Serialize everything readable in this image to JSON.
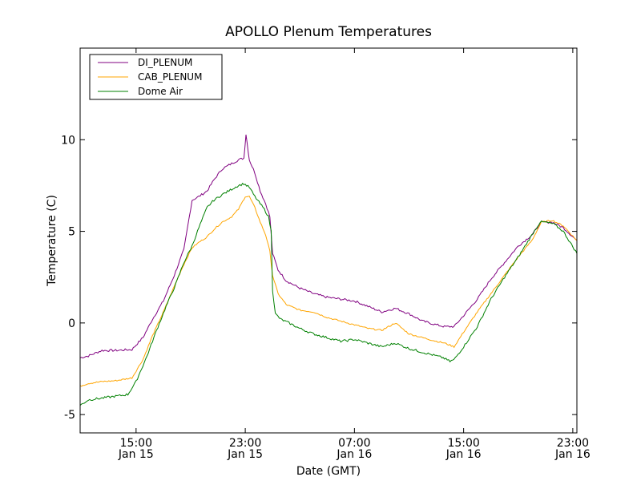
{
  "chart_data": {
    "type": "line",
    "title": "APOLLO Plenum Temperatures",
    "xlabel": "Date (GMT)",
    "ylabel": "Temperature (C)",
    "x_unit": "hours since Jan 15 00:00 GMT",
    "xlim": [
      10.9,
      47.3
    ],
    "ylim": [
      -6,
      15
    ],
    "grid": false,
    "legend_position": "top-left",
    "x_ticks": [
      {
        "value": 15,
        "line1": "15:00",
        "line2": "Jan 15"
      },
      {
        "value": 23,
        "line1": "23:00",
        "line2": "Jan 15"
      },
      {
        "value": 31,
        "line1": "07:00",
        "line2": "Jan 16"
      },
      {
        "value": 39,
        "line1": "15:00",
        "line2": "Jan 16"
      },
      {
        "value": 47,
        "line1": "23:00",
        "line2": "Jan 16"
      }
    ],
    "y_ticks": [
      {
        "value": -5,
        "label": "-5"
      },
      {
        "value": 0,
        "label": "0"
      },
      {
        "value": 5,
        "label": "5"
      },
      {
        "value": 10,
        "label": "10"
      }
    ],
    "series": [
      {
        "name": "DI_PLENUM",
        "color": "#800080",
        "x": [
          10.9,
          11.5,
          12.5,
          13.5,
          14.7,
          15.5,
          16.2,
          17.0,
          17.8,
          18.5,
          19.1,
          19.6,
          20.2,
          20.7,
          21.3,
          22.0,
          22.5,
          22.9,
          23.05,
          23.3,
          23.7,
          24.1,
          24.5,
          24.8,
          25.0,
          25.4,
          26.0,
          27.0,
          28.0,
          29.0,
          30.0,
          31.0,
          32.0,
          33.0,
          34.0,
          35.0,
          36.0,
          37.0,
          37.6,
          38.3,
          39.0,
          40.0,
          41.0,
          42.0,
          43.0,
          44.0,
          44.7,
          45.5,
          46.3,
          47.3
        ],
        "y": [
          -1.9,
          -1.8,
          -1.5,
          -1.5,
          -1.45,
          -0.8,
          0.2,
          1.2,
          2.6,
          4.0,
          6.7,
          6.9,
          7.2,
          7.8,
          8.4,
          8.7,
          8.9,
          9.0,
          10.3,
          8.9,
          8.2,
          7.2,
          6.5,
          5.8,
          3.8,
          2.9,
          2.3,
          1.9,
          1.6,
          1.4,
          1.3,
          1.2,
          0.9,
          0.6,
          0.8,
          0.5,
          0.1,
          -0.1,
          -0.2,
          -0.2,
          0.4,
          1.3,
          2.4,
          3.3,
          4.2,
          4.8,
          5.5,
          5.5,
          5.2,
          4.5
        ]
      },
      {
        "name": "CAB_PLENUM",
        "color": "#ffa500",
        "x": [
          10.9,
          11.5,
          12.5,
          13.5,
          14.7,
          15.5,
          16.2,
          17.0,
          17.8,
          18.5,
          19.1,
          19.6,
          20.2,
          20.7,
          21.3,
          22.0,
          22.5,
          23.0,
          23.3,
          23.7,
          24.1,
          24.5,
          24.8,
          25.0,
          25.4,
          26.0,
          27.0,
          28.0,
          29.0,
          30.0,
          31.0,
          32.0,
          33.0,
          34.0,
          35.0,
          36.0,
          37.0,
          37.6,
          38.3,
          39.0,
          40.0,
          41.0,
          42.0,
          43.0,
          44.0,
          44.7,
          45.5,
          46.3,
          47.3
        ],
        "y": [
          -3.45,
          -3.3,
          -3.2,
          -3.15,
          -3.0,
          -2.0,
          -0.7,
          0.6,
          2.0,
          3.2,
          4.1,
          4.4,
          4.7,
          5.1,
          5.5,
          5.8,
          6.2,
          6.9,
          6.9,
          6.3,
          5.5,
          4.8,
          3.9,
          2.6,
          1.6,
          1.0,
          0.7,
          0.6,
          0.3,
          0.1,
          -0.1,
          -0.3,
          -0.4,
          0.0,
          -0.6,
          -0.8,
          -1.0,
          -1.1,
          -1.3,
          -0.5,
          0.6,
          1.6,
          2.6,
          3.6,
          4.5,
          5.5,
          5.6,
          5.3,
          4.5
        ]
      },
      {
        "name": "Dome Air",
        "color": "#008000",
        "x": [
          10.9,
          11.5,
          12.5,
          13.5,
          14.4,
          15.0,
          15.8,
          16.5,
          17.2,
          17.9,
          18.5,
          19.1,
          19.6,
          20.2,
          20.7,
          21.3,
          22.0,
          22.5,
          22.9,
          23.3,
          23.7,
          24.0,
          24.4,
          24.7,
          24.9,
          25.0,
          25.2,
          25.6,
          26.2,
          27.0,
          28.0,
          29.0,
          30.0,
          31.0,
          32.0,
          33.0,
          34.0,
          35.0,
          36.0,
          37.0,
          37.5,
          38.0,
          38.3,
          39.0,
          40.0,
          41.0,
          42.0,
          43.0,
          44.0,
          44.6,
          45.0,
          45.6,
          46.3,
          47.3
        ],
        "y": [
          -4.5,
          -4.2,
          -4.1,
          -4.0,
          -3.9,
          -3.2,
          -1.8,
          -0.4,
          0.9,
          2.1,
          3.3,
          4.2,
          5.2,
          6.3,
          6.7,
          7.0,
          7.3,
          7.5,
          7.6,
          7.4,
          6.9,
          6.6,
          6.2,
          5.8,
          5.0,
          1.8,
          0.5,
          0.2,
          0.0,
          -0.3,
          -0.6,
          -0.8,
          -1.0,
          -0.9,
          -1.1,
          -1.3,
          -1.1,
          -1.4,
          -1.6,
          -1.8,
          -1.9,
          -2.1,
          -2.0,
          -1.3,
          -0.2,
          1.3,
          2.5,
          3.6,
          4.8,
          5.5,
          5.5,
          5.4,
          5.0,
          3.8
        ]
      }
    ]
  }
}
